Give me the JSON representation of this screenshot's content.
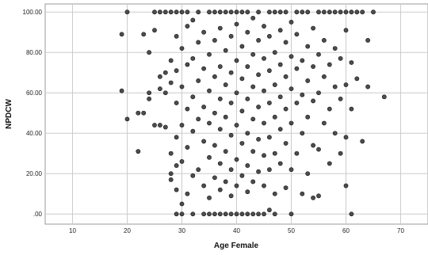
{
  "chart_data": {
    "type": "scatter",
    "title": "",
    "xlabel": "Age Female",
    "ylabel": "NPDCW",
    "xlim": [
      5,
      75
    ],
    "ylim": [
      -5,
      104
    ],
    "xticks": [
      10,
      20,
      30,
      40,
      50,
      60,
      70
    ],
    "xtick_labels": [
      "10",
      "20",
      "30",
      "40",
      "50",
      "60",
      "70"
    ],
    "yticks": [
      0,
      20,
      40,
      60,
      80,
      100
    ],
    "ytick_labels": [
      ".00",
      "20.00",
      "40.00",
      "60.00",
      "80.00",
      "100.00"
    ],
    "grid": true,
    "legend": "none",
    "marker_color": "#4d4d4d",
    "marker_edge": "#111111",
    "points": [
      [
        19,
        61
      ],
      [
        19,
        89
      ],
      [
        20,
        100
      ],
      [
        20,
        47
      ],
      [
        22,
        31
      ],
      [
        22,
        50
      ],
      [
        23,
        50
      ],
      [
        23,
        89
      ],
      [
        24,
        60
      ],
      [
        24,
        57
      ],
      [
        24,
        80
      ],
      [
        25,
        44
      ],
      [
        25,
        100
      ],
      [
        25,
        91
      ],
      [
        26,
        100
      ],
      [
        26,
        68
      ],
      [
        26,
        62
      ],
      [
        26,
        44
      ],
      [
        27,
        43
      ],
      [
        27,
        60
      ],
      [
        27,
        70
      ],
      [
        27,
        100
      ],
      [
        28,
        20
      ],
      [
        28,
        17
      ],
      [
        28,
        30
      ],
      [
        28,
        65
      ],
      [
        28,
        76
      ],
      [
        28,
        100
      ],
      [
        29,
        0
      ],
      [
        29,
        12
      ],
      [
        29,
        24
      ],
      [
        29,
        38
      ],
      [
        29,
        55
      ],
      [
        29,
        71
      ],
      [
        29,
        88
      ],
      [
        29,
        100
      ],
      [
        30,
        0
      ],
      [
        30,
        5
      ],
      [
        30,
        26
      ],
      [
        30,
        44
      ],
      [
        30,
        63
      ],
      [
        30,
        82
      ],
      [
        30,
        100
      ],
      [
        31,
        10
      ],
      [
        31,
        33
      ],
      [
        31,
        52
      ],
      [
        31,
        74
      ],
      [
        31,
        93
      ],
      [
        31,
        100
      ],
      [
        32,
        0
      ],
      [
        32,
        19
      ],
      [
        32,
        41
      ],
      [
        32,
        58
      ],
      [
        32,
        77
      ],
      [
        32,
        96
      ],
      [
        33,
        22
      ],
      [
        33,
        47
      ],
      [
        33,
        66
      ],
      [
        33,
        85
      ],
      [
        33,
        100
      ],
      [
        34,
        0
      ],
      [
        34,
        14
      ],
      [
        34,
        36
      ],
      [
        34,
        53
      ],
      [
        34,
        72
      ],
      [
        34,
        90
      ],
      [
        35,
        0
      ],
      [
        35,
        8
      ],
      [
        35,
        28
      ],
      [
        35,
        45
      ],
      [
        35,
        61
      ],
      [
        35,
        79
      ],
      [
        35,
        100
      ],
      [
        36,
        0
      ],
      [
        36,
        18
      ],
      [
        36,
        34
      ],
      [
        36,
        50
      ],
      [
        36,
        68
      ],
      [
        36,
        86
      ],
      [
        36,
        100
      ],
      [
        37,
        0
      ],
      [
        37,
        12
      ],
      [
        37,
        25
      ],
      [
        37,
        42
      ],
      [
        37,
        57
      ],
      [
        37,
        73
      ],
      [
        37,
        92
      ],
      [
        37,
        100
      ],
      [
        38,
        0
      ],
      [
        38,
        16
      ],
      [
        38,
        31
      ],
      [
        38,
        48
      ],
      [
        38,
        64
      ],
      [
        38,
        81
      ],
      [
        38,
        100
      ],
      [
        39,
        0
      ],
      [
        39,
        9
      ],
      [
        39,
        22
      ],
      [
        39,
        39
      ],
      [
        39,
        55
      ],
      [
        39,
        70
      ],
      [
        39,
        88
      ],
      [
        39,
        100
      ],
      [
        40,
        0
      ],
      [
        40,
        14
      ],
      [
        40,
        27
      ],
      [
        40,
        44
      ],
      [
        40,
        60
      ],
      [
        40,
        76
      ],
      [
        40,
        94
      ],
      [
        40,
        100
      ],
      [
        41,
        0
      ],
      [
        41,
        19
      ],
      [
        41,
        35
      ],
      [
        41,
        51
      ],
      [
        41,
        67
      ],
      [
        41,
        83
      ],
      [
        41,
        100
      ],
      [
        42,
        0
      ],
      [
        42,
        11
      ],
      [
        42,
        24
      ],
      [
        42,
        40
      ],
      [
        42,
        57
      ],
      [
        42,
        73
      ],
      [
        42,
        90
      ],
      [
        42,
        100
      ],
      [
        43,
        0
      ],
      [
        43,
        16
      ],
      [
        43,
        31
      ],
      [
        43,
        47
      ],
      [
        43,
        63
      ],
      [
        43,
        79
      ],
      [
        43,
        97
      ],
      [
        44,
        0
      ],
      [
        44,
        21
      ],
      [
        44,
        37
      ],
      [
        44,
        53
      ],
      [
        44,
        69
      ],
      [
        44,
        86
      ],
      [
        44,
        100
      ],
      [
        45,
        0
      ],
      [
        45,
        14
      ],
      [
        45,
        29
      ],
      [
        45,
        45
      ],
      [
        45,
        61
      ],
      [
        45,
        77
      ],
      [
        45,
        93
      ],
      [
        46,
        2
      ],
      [
        46,
        22
      ],
      [
        46,
        38
      ],
      [
        46,
        55
      ],
      [
        46,
        71
      ],
      [
        46,
        88
      ],
      [
        46,
        100
      ],
      [
        47,
        0
      ],
      [
        47,
        10
      ],
      [
        47,
        30
      ],
      [
        47,
        48
      ],
      [
        47,
        64
      ],
      [
        47,
        80
      ],
      [
        47,
        100
      ],
      [
        48,
        25
      ],
      [
        48,
        42
      ],
      [
        48,
        58
      ],
      [
        48,
        74
      ],
      [
        48,
        91
      ],
      [
        48,
        100
      ],
      [
        49,
        13
      ],
      [
        49,
        35
      ],
      [
        49,
        52
      ],
      [
        49,
        68
      ],
      [
        49,
        85
      ],
      [
        49,
        100
      ],
      [
        50,
        0
      ],
      [
        50,
        22
      ],
      [
        50,
        45
      ],
      [
        50,
        62
      ],
      [
        50,
        78
      ],
      [
        50,
        95
      ],
      [
        51,
        30
      ],
      [
        51,
        55
      ],
      [
        51,
        72
      ],
      [
        51,
        89
      ],
      [
        51,
        100
      ],
      [
        52,
        10
      ],
      [
        52,
        40
      ],
      [
        52,
        59
      ],
      [
        52,
        76
      ],
      [
        52,
        100
      ],
      [
        53,
        20
      ],
      [
        53,
        48
      ],
      [
        53,
        66
      ],
      [
        53,
        83
      ],
      [
        53,
        100
      ],
      [
        54,
        8
      ],
      [
        54,
        34
      ],
      [
        54,
        56
      ],
      [
        54,
        73
      ],
      [
        54,
        92
      ],
      [
        55,
        9
      ],
      [
        55,
        32
      ],
      [
        55,
        60
      ],
      [
        55,
        79
      ],
      [
        55,
        100
      ],
      [
        56,
        45
      ],
      [
        56,
        68
      ],
      [
        56,
        86
      ],
      [
        56,
        100
      ],
      [
        57,
        25
      ],
      [
        57,
        52
      ],
      [
        57,
        74
      ],
      [
        57,
        100
      ],
      [
        58,
        40
      ],
      [
        58,
        63
      ],
      [
        58,
        82
      ],
      [
        58,
        100
      ],
      [
        59,
        30
      ],
      [
        59,
        57
      ],
      [
        59,
        77
      ],
      [
        59,
        100
      ],
      [
        60,
        14
      ],
      [
        60,
        38
      ],
      [
        60,
        64
      ],
      [
        60,
        91
      ],
      [
        60,
        100
      ],
      [
        61,
        0
      ],
      [
        61,
        52
      ],
      [
        61,
        75
      ],
      [
        61,
        100
      ],
      [
        62,
        67
      ],
      [
        62,
        100
      ],
      [
        63,
        36
      ],
      [
        63,
        100
      ],
      [
        64,
        63
      ],
      [
        64,
        86
      ],
      [
        65,
        100
      ],
      [
        67,
        58
      ]
    ]
  }
}
